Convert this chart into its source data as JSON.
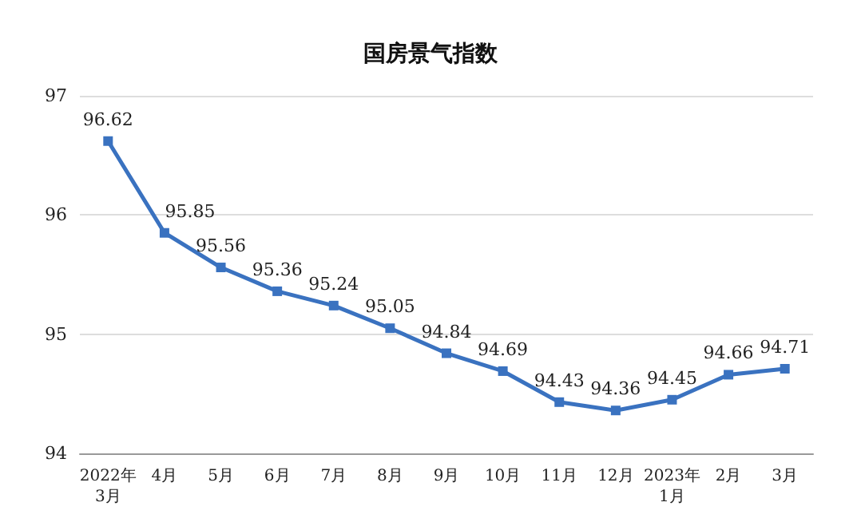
{
  "chart_data": {
    "type": "line",
    "title": "国房景气指数",
    "categories": [
      "2022年\n3月",
      "4月",
      "5月",
      "6月",
      "7月",
      "8月",
      "9月",
      "10月",
      "11月",
      "12月",
      "2023年\n1月",
      "2月",
      "3月"
    ],
    "series": [
      {
        "color": "#3a72c0",
        "values": [
          96.62,
          95.85,
          95.56,
          95.36,
          95.24,
          95.05,
          94.84,
          94.69,
          94.43,
          94.36,
          94.45,
          94.66,
          94.71
        ]
      }
    ],
    "ylim": [
      94,
      97
    ],
    "yticks": [
      94,
      95,
      96,
      97
    ],
    "grid": "y",
    "data_labels": true,
    "marker": "square",
    "line_style": "solid"
  }
}
